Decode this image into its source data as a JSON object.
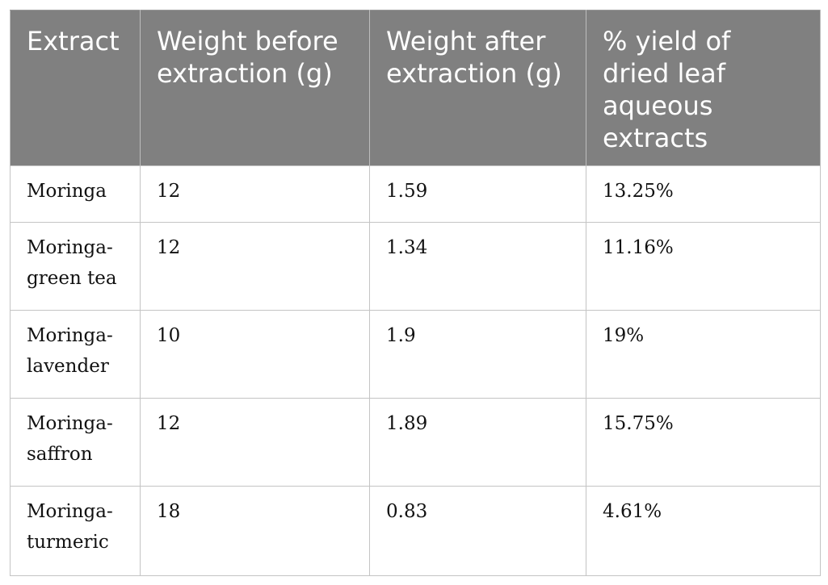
{
  "table": {
    "headers": [
      "Extract",
      "Weight before extraction (g)",
      "Weight after extraction (g)",
      "% yield of dried leaf aqueous extracts"
    ],
    "rows": [
      [
        "Moringa",
        "12",
        "1.59",
        "13.25%"
      ],
      [
        "Moringa-green tea",
        "12",
        "1.34",
        "11.16%"
      ],
      [
        "Moringa-lavender",
        "10",
        "1.9",
        "19%"
      ],
      [
        "Moringa-saffron",
        "12",
        "1.89",
        "15.75%"
      ],
      [
        "Moringa-turmeric",
        "18",
        "0.83",
        "4.61%"
      ]
    ]
  },
  "colors": {
    "header_background": "#808080",
    "header_text": "#ffffff",
    "border": "#c4c4c4"
  }
}
